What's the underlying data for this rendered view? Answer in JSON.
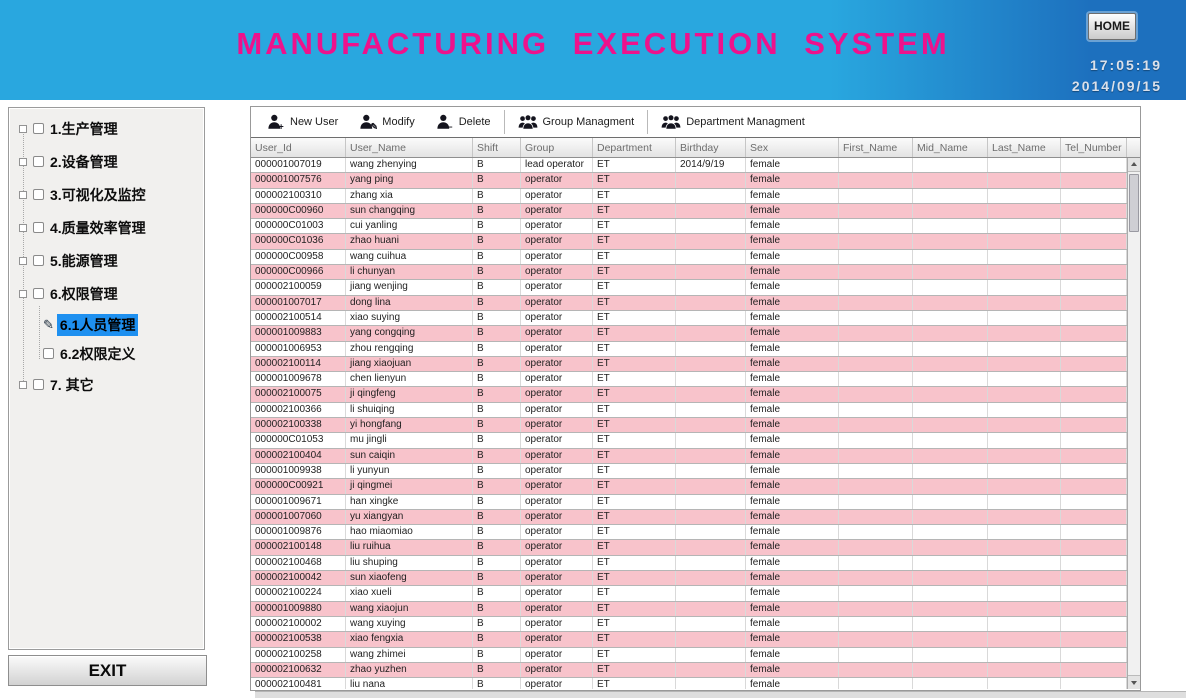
{
  "header": {
    "title": "MANUFACTURING EXECUTION SYSTEM",
    "home_button": "HOME",
    "time": "17:05:19",
    "date": "2014/09/15"
  },
  "sidebar": {
    "items": [
      {
        "label": "1.生产管理",
        "level": 1,
        "selected": false
      },
      {
        "label": "2.设备管理",
        "level": 1,
        "selected": false
      },
      {
        "label": "3.可视化及监控",
        "level": 1,
        "selected": false
      },
      {
        "label": "4.质量效率管理",
        "level": 1,
        "selected": false
      },
      {
        "label": "5.能源管理",
        "level": 1,
        "selected": false
      },
      {
        "label": "6.权限管理",
        "level": 1,
        "selected": false
      },
      {
        "label": "6.1人员管理",
        "level": 2,
        "selected": true
      },
      {
        "label": "6.2权限定义",
        "level": 2,
        "selected": false
      },
      {
        "label": "7. 其它",
        "level": 1,
        "selected": false
      }
    ],
    "exit_button": "EXIT"
  },
  "toolbar": {
    "buttons": [
      {
        "label": "New User",
        "icon": "user-add-icon",
        "separator_before": false
      },
      {
        "label": "Modify",
        "icon": "user-edit-icon",
        "separator_before": false
      },
      {
        "label": "Delete",
        "icon": "user-remove-icon",
        "separator_before": false
      },
      {
        "label": "Group Managment",
        "icon": "group-icon",
        "separator_before": true
      },
      {
        "label": "Department Managment",
        "icon": "department-icon",
        "separator_before": true
      }
    ]
  },
  "table": {
    "columns": [
      "User_Id",
      "User_Name",
      "Shift",
      "Group",
      "Department",
      "Birthday",
      "Sex",
      "First_Name",
      "Mid_Name",
      "Last_Name",
      "Tel_Number"
    ],
    "rows": [
      [
        "000001007019",
        "wang zhenying",
        "B",
        "lead operator",
        "ET",
        "2014/9/19",
        "female"
      ],
      [
        "000001007576",
        "yang ping",
        "B",
        "operator",
        "ET",
        "",
        "female"
      ],
      [
        "000002100310",
        "zhang xia",
        "B",
        "operator",
        "ET",
        "",
        "female"
      ],
      [
        "000000C00960",
        "sun changqing",
        "B",
        "operator",
        "ET",
        "",
        "female"
      ],
      [
        "000000C01003",
        "cui yanling",
        "B",
        "operator",
        "ET",
        "",
        "female"
      ],
      [
        "000000C01036",
        "zhao huani",
        "B",
        "operator",
        "ET",
        "",
        "female"
      ],
      [
        "000000C00958",
        "wang cuihua",
        "B",
        "operator",
        "ET",
        "",
        "female"
      ],
      [
        "000000C00966",
        "li chunyan",
        "B",
        "operator",
        "ET",
        "",
        "female"
      ],
      [
        "000002100059",
        "jiang wenjing",
        "B",
        "operator",
        "ET",
        "",
        "female"
      ],
      [
        "000001007017",
        "dong lina",
        "B",
        "operator",
        "ET",
        "",
        "female"
      ],
      [
        "000002100514",
        "xiao suying",
        "B",
        "operator",
        "ET",
        "",
        "female"
      ],
      [
        "000001009883",
        "yang congqing",
        "B",
        "operator",
        "ET",
        "",
        "female"
      ],
      [
        "000001006953",
        "zhou rengqing",
        "B",
        "operator",
        "ET",
        "",
        "female"
      ],
      [
        "000002100114",
        "jiang xiaojuan",
        "B",
        "operator",
        "ET",
        "",
        "female"
      ],
      [
        "000001009678",
        "chen lienyun",
        "B",
        "operator",
        "ET",
        "",
        "female"
      ],
      [
        "000002100075",
        "ji qingfeng",
        "B",
        "operator",
        "ET",
        "",
        "female"
      ],
      [
        "000002100366",
        "li shuiqing",
        "B",
        "operator",
        "ET",
        "",
        "female"
      ],
      [
        "000002100338",
        "yi hongfang",
        "B",
        "operator",
        "ET",
        "",
        "female"
      ],
      [
        "000000C01053",
        "mu jingli",
        "B",
        "operator",
        "ET",
        "",
        "female"
      ],
      [
        "000002100404",
        "sun caiqin",
        "B",
        "operator",
        "ET",
        "",
        "female"
      ],
      [
        "000001009938",
        "li yunyun",
        "B",
        "operator",
        "ET",
        "",
        "female"
      ],
      [
        "000000C00921",
        "ji qingmei",
        "B",
        "operator",
        "ET",
        "",
        "female"
      ],
      [
        "000001009671",
        "han xingke",
        "B",
        "operator",
        "ET",
        "",
        "female"
      ],
      [
        "000001007060",
        "yu xiangyan",
        "B",
        "operator",
        "ET",
        "",
        "female"
      ],
      [
        "000001009876",
        "hao miaomiao",
        "B",
        "operator",
        "ET",
        "",
        "female"
      ],
      [
        "000002100148",
        "liu ruihua",
        "B",
        "operator",
        "ET",
        "",
        "female"
      ],
      [
        "000002100468",
        "liu shuping",
        "B",
        "operator",
        "ET",
        "",
        "female"
      ],
      [
        "000002100042",
        "sun xiaofeng",
        "B",
        "operator",
        "ET",
        "",
        "female"
      ],
      [
        "000002100224",
        "xiao xueli",
        "B",
        "operator",
        "ET",
        "",
        "female"
      ],
      [
        "000001009880",
        "wang xiaojun",
        "B",
        "operator",
        "ET",
        "",
        "female"
      ],
      [
        "000002100002",
        "wang xuying",
        "B",
        "operator",
        "ET",
        "",
        "female"
      ],
      [
        "000002100538",
        "xiao fengxia",
        "B",
        "operator",
        "ET",
        "",
        "female"
      ],
      [
        "000002100258",
        "wang zhimei",
        "B",
        "operator",
        "ET",
        "",
        "female"
      ],
      [
        "000002100632",
        "zhao yuzhen",
        "B",
        "operator",
        "ET",
        "",
        "female"
      ],
      [
        "000002100481",
        "liu nana",
        "B",
        "operator",
        "ET",
        "",
        "female"
      ]
    ]
  },
  "colors": {
    "header_blue": "#29a7df",
    "header_blue_dark": "#1d70be",
    "title_magenta": "#ee128c",
    "row_pink": "#f8c3cb",
    "selected_blue": "#1e90f0"
  }
}
